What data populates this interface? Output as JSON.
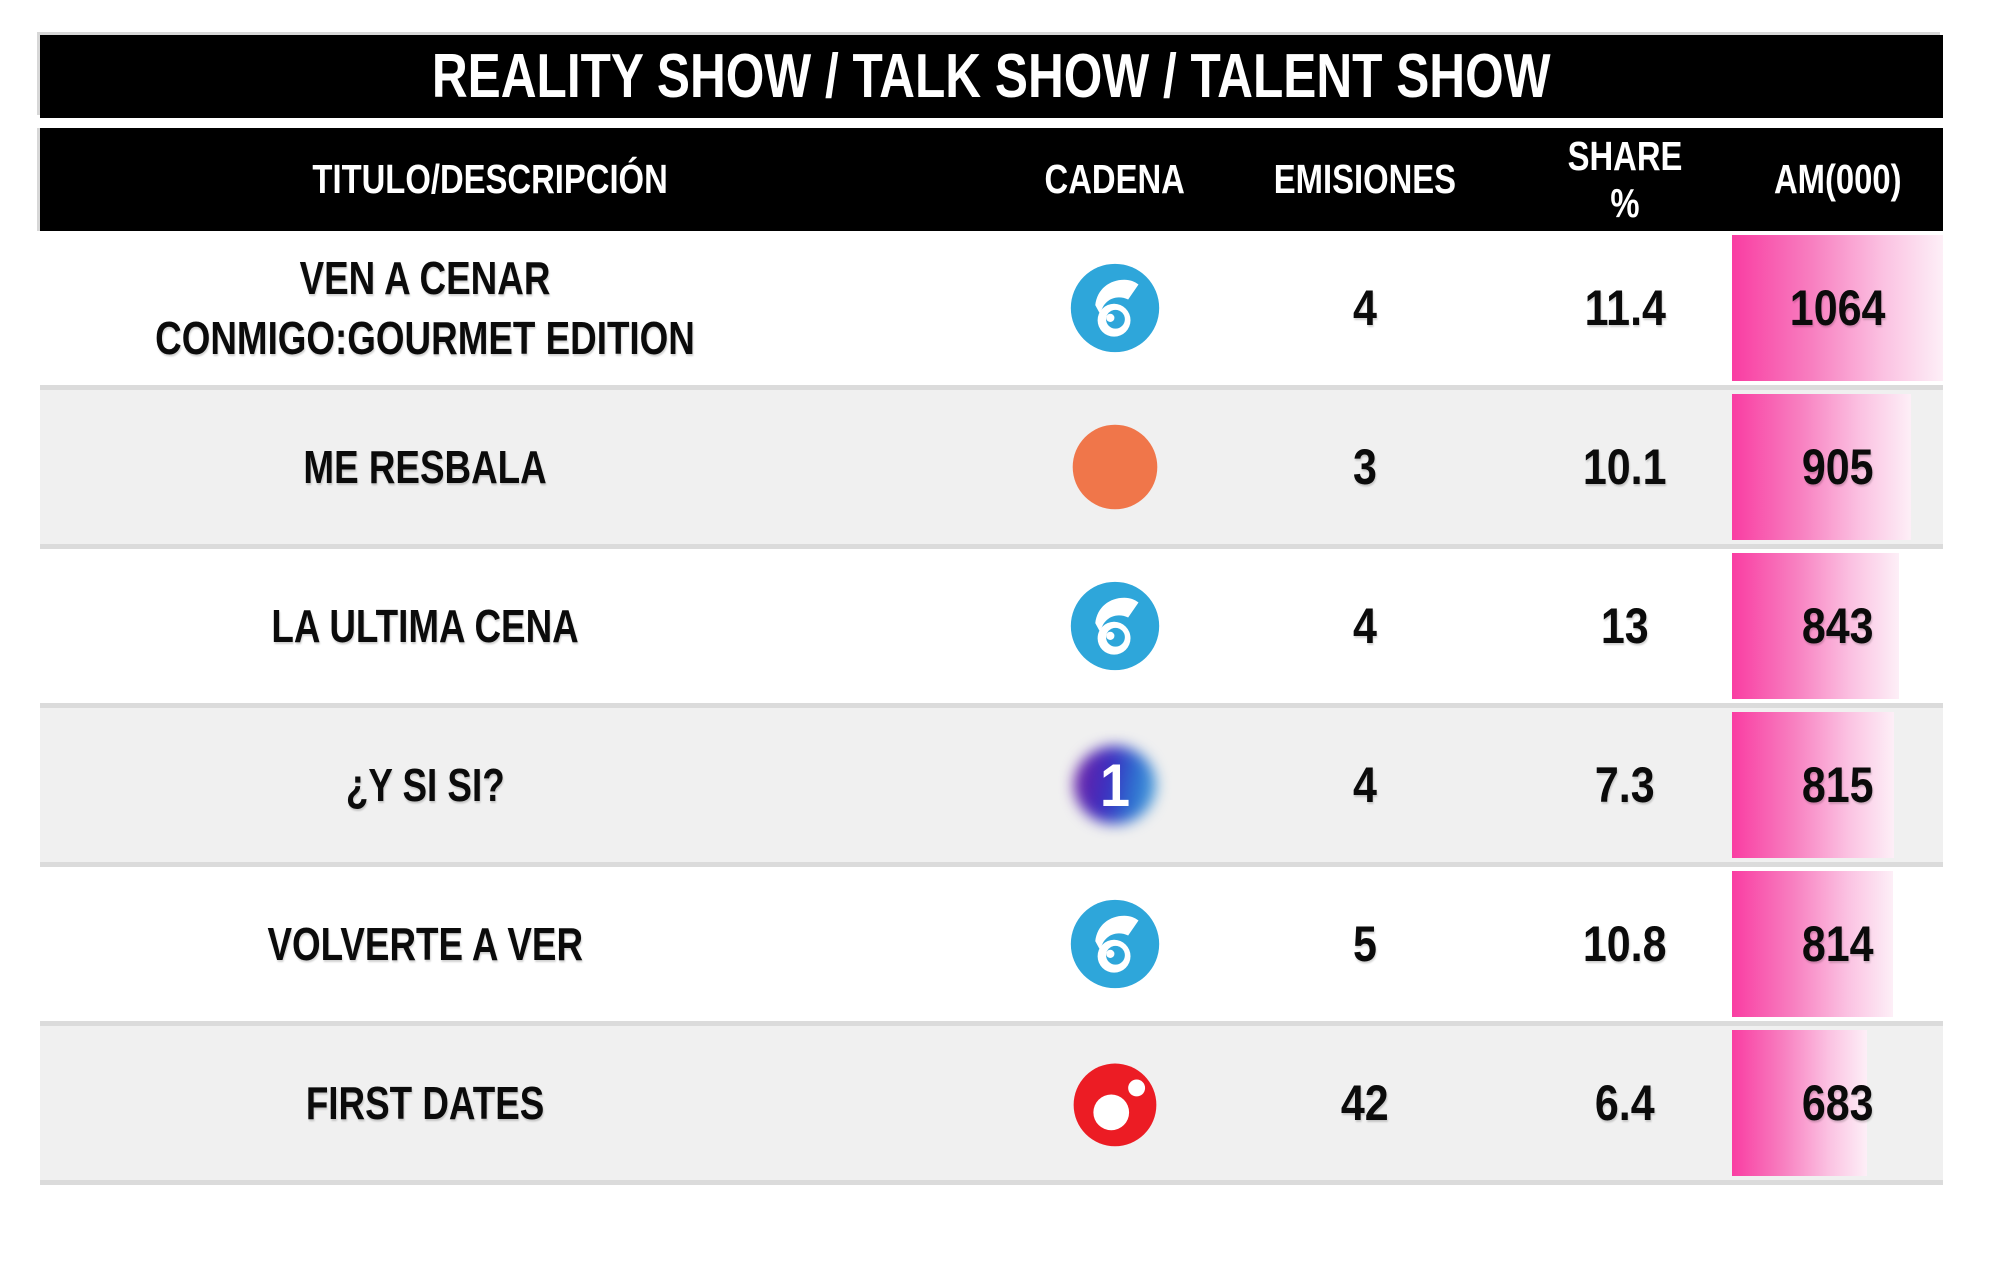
{
  "title": "REALITY SHOW / TALK SHOW / TALENT SHOW",
  "columns": [
    "TITULO/DESCRIPCIÓN",
    "CADENA",
    "EMISIONES",
    "SHARE %",
    "AM(000)"
  ],
  "rows": [
    {
      "title": "VEN A CENAR CONMIGO:GOURMET EDITION",
      "channel": "telecinco",
      "channel_name": "Telecinco",
      "emisiones": "4",
      "share": "11.4",
      "am": 1064
    },
    {
      "title": "ME RESBALA",
      "channel": "antena3",
      "channel_name": "Antena 3",
      "emisiones": "3",
      "share": "10.1",
      "am": 905
    },
    {
      "title": "LA ULTIMA CENA",
      "channel": "telecinco",
      "channel_name": "Telecinco",
      "emisiones": "4",
      "share": "13",
      "am": 843
    },
    {
      "title": "¿Y SI SI?",
      "channel": "la1",
      "channel_name": "La 1",
      "emisiones": "4",
      "share": "7.3",
      "am": 815
    },
    {
      "title": "VOLVERTE A VER",
      "channel": "telecinco",
      "channel_name": "Telecinco",
      "emisiones": "5",
      "share": "10.8",
      "am": 814
    },
    {
      "title": "FIRST DATES",
      "channel": "cuatro",
      "channel_name": "Cuatro",
      "emisiones": "42",
      "share": "6.4",
      "am": 683
    }
  ],
  "colors": {
    "pink_start": "#F93DA2",
    "pink_end": "#FDEFF7",
    "row_alt": "#F0F0F0",
    "separator": "#DBDBDB",
    "header_bg": "#000000",
    "telecinco": "#2EA6DA",
    "antena3": "#F0764A",
    "cuatro": "#EC1C24",
    "la1_purple": "#6B21A8",
    "la1_blue": "#2D6FD0"
  },
  "chart_data": {
    "type": "table",
    "title": "REALITY SHOW / TALK SHOW / TALENT SHOW",
    "columns": [
      "TITULO/DESCRIPCIÓN",
      "CADENA",
      "EMISIONES",
      "SHARE %",
      "AM(000)"
    ],
    "rows": [
      {
        "titulo": "VEN A CENAR CONMIGO:GOURMET EDITION",
        "cadena": "Telecinco",
        "emisiones": 4,
        "share_pct": 11.4,
        "am_000": 1064
      },
      {
        "titulo": "ME RESBALA",
        "cadena": "Antena 3",
        "emisiones": 3,
        "share_pct": 10.1,
        "am_000": 905
      },
      {
        "titulo": "LA ULTIMA CENA",
        "cadena": "Telecinco",
        "emisiones": 4,
        "share_pct": 13,
        "am_000": 843
      },
      {
        "titulo": "¿Y SI SI?",
        "cadena": "La 1",
        "emisiones": 4,
        "share_pct": 7.3,
        "am_000": 815
      },
      {
        "titulo": "VOLVERTE A VER",
        "cadena": "Telecinco",
        "emisiones": 5,
        "share_pct": 10.8,
        "am_000": 814
      },
      {
        "titulo": "FIRST DATES",
        "cadena": "Cuatro",
        "emisiones": 42,
        "share_pct": 6.4,
        "am_000": 683
      }
    ],
    "bar_column": "AM(000)",
    "bar_max": 1064,
    "bar_note": "pink left-to-right fading data bars in AM(000) column, width proportional to value"
  }
}
